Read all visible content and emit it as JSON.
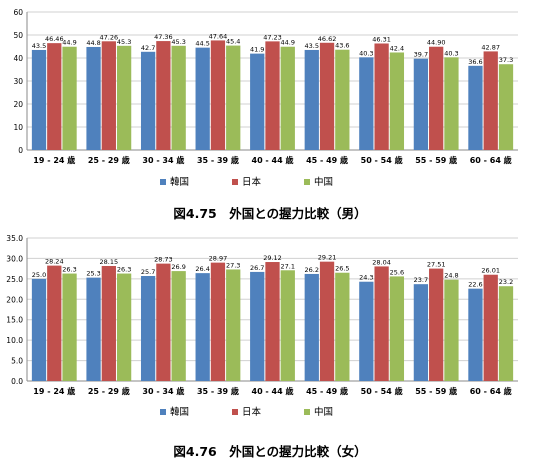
{
  "captions": [
    "図4.75　外国との握力比較（男）",
    "図4.76　外国との握力比較（女）"
  ],
  "colors": {
    "韓国": "#4F81BD",
    "日本": "#C0504D",
    "中国": "#9BBB59"
  },
  "chart_data": [
    {
      "type": "bar",
      "title": "図4.75　外国との握力比較（男）",
      "categories": [
        "19 - 24 歳",
        "25 - 29 歳",
        "30 - 34 歳",
        "35 - 39 歳",
        "40 - 44 歳",
        "45 - 49 歳",
        "50 - 54 歳",
        "55 - 59 歳",
        "60 - 64 歳"
      ],
      "ylim": [
        0,
        60
      ],
      "yticks": [
        "0",
        "10",
        "20",
        "30",
        "40",
        "50",
        "60"
      ],
      "grid": true,
      "legend": "bottom",
      "series": [
        {
          "name": "韓国",
          "values": [
            43.5,
            44.8,
            42.7,
            44.5,
            41.9,
            43.5,
            40.3,
            39.7,
            36.6
          ],
          "labels": [
            "43.5",
            "44.8",
            "42.7",
            "44.5",
            "41.9",
            "43.5",
            "40.3",
            "39.7",
            "36.6"
          ]
        },
        {
          "name": "日本",
          "values": [
            46.46,
            47.26,
            47.36,
            47.64,
            47.23,
            46.62,
            46.31,
            44.9,
            42.87
          ],
          "labels": [
            "46.46",
            "47.26",
            "47.36",
            "47.64",
            "47.23",
            "46.62",
            "46.31",
            "44.90",
            "42.87"
          ]
        },
        {
          "name": "中国",
          "values": [
            44.9,
            45.3,
            45.3,
            45.4,
            44.9,
            43.6,
            42.4,
            40.3,
            37.3
          ],
          "labels": [
            "44.9",
            "45.3",
            "45.3",
            "45.4",
            "44.9",
            "43.6",
            "42.4",
            "40.3",
            "37.3"
          ]
        }
      ]
    },
    {
      "type": "bar",
      "title": "図4.76　外国との握力比較（女）",
      "categories": [
        "19 - 24 歳",
        "25 - 29 歳",
        "30 - 34 歳",
        "35 - 39 歳",
        "40 - 44 歳",
        "45 - 49 歳",
        "50 - 54 歳",
        "55 - 59 歳",
        "60 - 64 歳"
      ],
      "ylim": [
        0,
        35
      ],
      "yticks": [
        "0.0",
        "5.0",
        "10.0",
        "15.0",
        "20.0",
        "25.0",
        "30.0",
        "35.0"
      ],
      "grid": true,
      "legend": "bottom",
      "series": [
        {
          "name": "韓国",
          "values": [
            25.0,
            25.3,
            25.7,
            26.4,
            26.7,
            26.2,
            24.3,
            23.7,
            22.6
          ],
          "labels": [
            "25.0",
            "25.3",
            "25.7",
            "26.4",
            "26.7",
            "26.2",
            "24.3",
            "23.7",
            "22.6"
          ]
        },
        {
          "name": "日本",
          "values": [
            28.24,
            28.15,
            28.73,
            28.97,
            29.12,
            29.21,
            28.04,
            27.51,
            26.01
          ],
          "labels": [
            "28.24",
            "28.15",
            "28.73",
            "28.97",
            "29.12",
            "29.21",
            "28.04",
            "27.51",
            "26.01"
          ]
        },
        {
          "name": "中国",
          "values": [
            26.3,
            26.3,
            26.9,
            27.3,
            27.1,
            26.5,
            25.6,
            24.8,
            23.2
          ],
          "labels": [
            "26.3",
            "26.3",
            "26.9",
            "27.3",
            "27.1",
            "26.5",
            "25.6",
            "24.8",
            "23.2"
          ]
        }
      ]
    }
  ]
}
